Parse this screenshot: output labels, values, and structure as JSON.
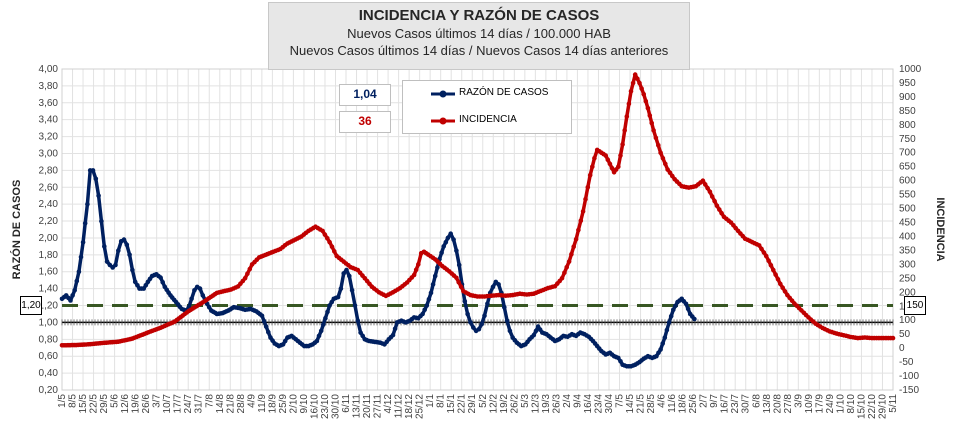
{
  "chart_data": {
    "type": "line",
    "title": "INCIDENCIA Y RAZÓN DE CASOS",
    "subtitle_1": "Nuevos Casos últimos 14 días / 100.000 HAB",
    "subtitle_2": "Nuevos Casos últimos 14 días / Nuevos Casos 14 días anteriores",
    "ylabel_left": "RAZÓN DE CASOS",
    "ylabel_right": "INCIDENCIA",
    "ylim_left": [
      0.2,
      4.0
    ],
    "ylim_right": [
      -150,
      1000
    ],
    "yticks_left": [
      "4,00",
      "3,80",
      "3,60",
      "3,40",
      "3,20",
      "3,00",
      "2,80",
      "2,60",
      "2,40",
      "2,20",
      "2,00",
      "1,80",
      "1,60",
      "1,40",
      "1,20",
      "1,00",
      "0,80",
      "0,60",
      "0,40",
      "0,20"
    ],
    "yticks_right": [
      "1000",
      "950",
      "900",
      "850",
      "800",
      "750",
      "700",
      "650",
      "600",
      "550",
      "500",
      "450",
      "400",
      "350",
      "300",
      "250",
      "200",
      "150",
      "100",
      "50",
      "0",
      "-50",
      "-100",
      "-150"
    ],
    "xticks": [
      "1/5",
      "8/5",
      "15/5",
      "22/5",
      "29/5",
      "5/6",
      "12/6",
      "19/6",
      "26/6",
      "3/7",
      "10/7",
      "17/7",
      "24/7",
      "31/7",
      "7/8",
      "14/8",
      "21/8",
      "28/8",
      "4/9",
      "11/9",
      "18/9",
      "25/9",
      "2/10",
      "9/10",
      "16/10",
      "23/10",
      "30/10",
      "6/11",
      "13/11",
      "20/11",
      "27/11",
      "4/12",
      "11/12",
      "18/12",
      "25/12",
      "1/1",
      "8/1",
      "15/1",
      "22/1",
      "29/1",
      "5/2",
      "12/2",
      "19/2",
      "26/2",
      "5/3",
      "12/3",
      "19/3",
      "26/3",
      "2/4",
      "9/4",
      "16/4",
      "23/4",
      "30/4",
      "7/5",
      "14/5",
      "21/5",
      "28/5",
      "4/6",
      "11/6",
      "18/6",
      "25/6",
      "2/7",
      "9/7",
      "16/7",
      "23/7",
      "30/7",
      "6/8",
      "13/8",
      "20/8",
      "27/8",
      "3/9",
      "10/9",
      "17/9",
      "24/9",
      "1/10",
      "8/10",
      "15/10",
      "22/10",
      "29/10",
      "5/11"
    ],
    "reference_lines": {
      "razon_upper": 1.2,
      "razon_one": 1.0
    },
    "current_values": {
      "razon": "1,04",
      "incidencia": "36"
    },
    "highlight_left": "1,20",
    "highlight_right": "150",
    "series": [
      {
        "name": "RAZÓN DE CASOS",
        "color": "#002060",
        "axis": "left",
        "points": [
          [
            0,
            1.28
          ],
          [
            3,
            1.32
          ],
          [
            6,
            1.26
          ],
          [
            9,
            1.38
          ],
          [
            12,
            1.6
          ],
          [
            15,
            1.95
          ],
          [
            18,
            2.4
          ],
          [
            20,
            2.8
          ],
          [
            22,
            2.8
          ],
          [
            24,
            2.7
          ],
          [
            26,
            2.5
          ],
          [
            28,
            2.2
          ],
          [
            30,
            1.9
          ],
          [
            32,
            1.72
          ],
          [
            34,
            1.68
          ],
          [
            36,
            1.65
          ],
          [
            38,
            1.68
          ],
          [
            40,
            1.85
          ],
          [
            42,
            1.96
          ],
          [
            44,
            1.98
          ],
          [
            46,
            1.92
          ],
          [
            48,
            1.8
          ],
          [
            50,
            1.62
          ],
          [
            52,
            1.48
          ],
          [
            55,
            1.4
          ],
          [
            58,
            1.4
          ],
          [
            61,
            1.48
          ],
          [
            64,
            1.55
          ],
          [
            67,
            1.57
          ],
          [
            70,
            1.53
          ],
          [
            73,
            1.42
          ],
          [
            77,
            1.32
          ],
          [
            81,
            1.24
          ],
          [
            85,
            1.16
          ],
          [
            88,
            1.14
          ],
          [
            90,
            1.18
          ],
          [
            92,
            1.28
          ],
          [
            94,
            1.38
          ],
          [
            96,
            1.42
          ],
          [
            98,
            1.4
          ],
          [
            100,
            1.32
          ],
          [
            103,
            1.22
          ],
          [
            106,
            1.14
          ],
          [
            110,
            1.1
          ],
          [
            114,
            1.11
          ],
          [
            118,
            1.14
          ],
          [
            122,
            1.18
          ],
          [
            126,
            1.17
          ],
          [
            130,
            1.15
          ],
          [
            134,
            1.16
          ],
          [
            138,
            1.13
          ],
          [
            142,
            1.08
          ],
          [
            145,
            0.95
          ],
          [
            148,
            0.82
          ],
          [
            151,
            0.75
          ],
          [
            154,
            0.72
          ],
          [
            157,
            0.74
          ],
          [
            160,
            0.82
          ],
          [
            163,
            0.84
          ],
          [
            166,
            0.8
          ],
          [
            169,
            0.76
          ],
          [
            172,
            0.72
          ],
          [
            175,
            0.72
          ],
          [
            178,
            0.74
          ],
          [
            181,
            0.78
          ],
          [
            184,
            0.9
          ],
          [
            187,
            1.05
          ],
          [
            190,
            1.2
          ],
          [
            193,
            1.28
          ],
          [
            196,
            1.3
          ],
          [
            198,
            1.4
          ],
          [
            200,
            1.58
          ],
          [
            202,
            1.62
          ],
          [
            204,
            1.55
          ],
          [
            206,
            1.38
          ],
          [
            208,
            1.2
          ],
          [
            210,
            1.02
          ],
          [
            212,
            0.88
          ],
          [
            215,
            0.8
          ],
          [
            218,
            0.78
          ],
          [
            222,
            0.77
          ],
          [
            226,
            0.76
          ],
          [
            229,
            0.74
          ],
          [
            232,
            0.8
          ],
          [
            235,
            0.85
          ],
          [
            238,
            1.0
          ],
          [
            241,
            1.02
          ],
          [
            244,
            1.0
          ],
          [
            247,
            1.02
          ],
          [
            250,
            1.06
          ],
          [
            253,
            1.05
          ],
          [
            256,
            1.1
          ],
          [
            259,
            1.2
          ],
          [
            262,
            1.35
          ],
          [
            265,
            1.55
          ],
          [
            268,
            1.75
          ],
          [
            271,
            1.9
          ],
          [
            274,
            2.0
          ],
          [
            276,
            2.05
          ],
          [
            278,
            1.98
          ],
          [
            280,
            1.85
          ],
          [
            282,
            1.68
          ],
          [
            284,
            1.45
          ],
          [
            286,
            1.25
          ],
          [
            288,
            1.1
          ],
          [
            290,
            1.0
          ],
          [
            292,
            0.94
          ],
          [
            294,
            0.9
          ],
          [
            296,
            0.92
          ],
          [
            298,
            0.98
          ],
          [
            300,
            1.08
          ],
          [
            302,
            1.22
          ],
          [
            304,
            1.35
          ],
          [
            306,
            1.42
          ],
          [
            308,
            1.48
          ],
          [
            310,
            1.45
          ],
          [
            312,
            1.35
          ],
          [
            314,
            1.18
          ],
          [
            316,
            1.02
          ],
          [
            318,
            0.9
          ],
          [
            320,
            0.82
          ],
          [
            323,
            0.76
          ],
          [
            326,
            0.72
          ],
          [
            329,
            0.74
          ],
          [
            332,
            0.8
          ],
          [
            335,
            0.85
          ],
          [
            338,
            0.95
          ],
          [
            341,
            0.88
          ],
          [
            344,
            0.86
          ],
          [
            347,
            0.82
          ],
          [
            350,
            0.78
          ],
          [
            353,
            0.8
          ],
          [
            356,
            0.84
          ],
          [
            359,
            0.83
          ],
          [
            362,
            0.86
          ],
          [
            365,
            0.84
          ],
          [
            368,
            0.88
          ],
          [
            371,
            0.86
          ],
          [
            374,
            0.83
          ],
          [
            377,
            0.78
          ],
          [
            380,
            0.72
          ],
          [
            383,
            0.66
          ],
          [
            386,
            0.62
          ],
          [
            389,
            0.64
          ],
          [
            392,
            0.6
          ],
          [
            395,
            0.58
          ],
          [
            398,
            0.5
          ],
          [
            401,
            0.48
          ],
          [
            404,
            0.48
          ],
          [
            407,
            0.5
          ],
          [
            410,
            0.53
          ],
          [
            413,
            0.57
          ],
          [
            416,
            0.6
          ],
          [
            419,
            0.58
          ],
          [
            422,
            0.6
          ],
          [
            425,
            0.68
          ],
          [
            428,
            0.82
          ],
          [
            431,
            1.0
          ],
          [
            434,
            1.15
          ],
          [
            437,
            1.24
          ],
          [
            440,
            1.28
          ],
          [
            443,
            1.22
          ],
          [
            446,
            1.1
          ],
          [
            449,
            1.04
          ]
        ]
      },
      {
        "name": "INCIDENCIA",
        "color": "#c00000",
        "axis": "right",
        "points": [
          [
            0,
            10
          ],
          [
            10,
            11
          ],
          [
            20,
            14
          ],
          [
            30,
            19
          ],
          [
            40,
            23
          ],
          [
            50,
            34
          ],
          [
            60,
            54
          ],
          [
            70,
            73
          ],
          [
            80,
            95
          ],
          [
            90,
            133
          ],
          [
            100,
            164
          ],
          [
            110,
            198
          ],
          [
            120,
            210
          ],
          [
            125,
            221
          ],
          [
            130,
            250
          ],
          [
            135,
            300
          ],
          [
            140,
            325
          ],
          [
            150,
            345
          ],
          [
            155,
            355
          ],
          [
            160,
            375
          ],
          [
            170,
            400
          ],
          [
            175,
            420
          ],
          [
            180,
            435
          ],
          [
            185,
            420
          ],
          [
            190,
            380
          ],
          [
            195,
            330
          ],
          [
            200,
            310
          ],
          [
            205,
            290
          ],
          [
            210,
            280
          ],
          [
            215,
            250
          ],
          [
            220,
            220
          ],
          [
            225,
            200
          ],
          [
            230,
            187
          ],
          [
            235,
            200
          ],
          [
            240,
            215
          ],
          [
            245,
            235
          ],
          [
            250,
            262
          ],
          [
            253,
            300
          ],
          [
            255,
            340
          ],
          [
            257,
            345
          ],
          [
            260,
            335
          ],
          [
            265,
            318
          ],
          [
            270,
            294
          ],
          [
            275,
            275
          ],
          [
            280,
            252
          ],
          [
            285,
            204
          ],
          [
            290,
            190
          ],
          [
            295,
            185
          ],
          [
            300,
            185
          ],
          [
            305,
            188
          ],
          [
            310,
            190
          ],
          [
            315,
            188
          ],
          [
            320,
            190
          ],
          [
            325,
            195
          ],
          [
            330,
            192
          ],
          [
            335,
            195
          ],
          [
            340,
            205
          ],
          [
            345,
            215
          ],
          [
            350,
            222
          ],
          [
            355,
            250
          ],
          [
            360,
            310
          ],
          [
            365,
            390
          ],
          [
            370,
            490
          ],
          [
            375,
            620
          ],
          [
            378,
            680
          ],
          [
            380,
            710
          ],
          [
            383,
            700
          ],
          [
            386,
            690
          ],
          [
            389,
            660
          ],
          [
            392,
            630
          ],
          [
            395,
            650
          ],
          [
            398,
            730
          ],
          [
            401,
            830
          ],
          [
            404,
            920
          ],
          [
            407,
            980
          ],
          [
            410,
            950
          ],
          [
            413,
            910
          ],
          [
            416,
            860
          ],
          [
            420,
            780
          ],
          [
            425,
            700
          ],
          [
            430,
            640
          ],
          [
            435,
            605
          ],
          [
            440,
            580
          ],
          [
            445,
            575
          ],
          [
            450,
            580
          ],
          [
            455,
            600
          ],
          [
            460,
            560
          ],
          [
            465,
            510
          ],
          [
            470,
            470
          ],
          [
            475,
            450
          ],
          [
            480,
            420
          ],
          [
            485,
            392
          ],
          [
            490,
            380
          ],
          [
            495,
            368
          ],
          [
            500,
            330
          ],
          [
            505,
            280
          ],
          [
            510,
            230
          ],
          [
            515,
            190
          ],
          [
            520,
            160
          ],
          [
            525,
            135
          ],
          [
            530,
            110
          ],
          [
            535,
            88
          ],
          [
            540,
            72
          ],
          [
            545,
            60
          ],
          [
            550,
            52
          ],
          [
            555,
            46
          ],
          [
            560,
            40
          ],
          [
            565,
            36
          ],
          [
            570,
            38
          ],
          [
            575,
            36
          ],
          [
            580,
            36
          ],
          [
            585,
            36
          ],
          [
            590,
            36
          ]
        ]
      }
    ]
  }
}
